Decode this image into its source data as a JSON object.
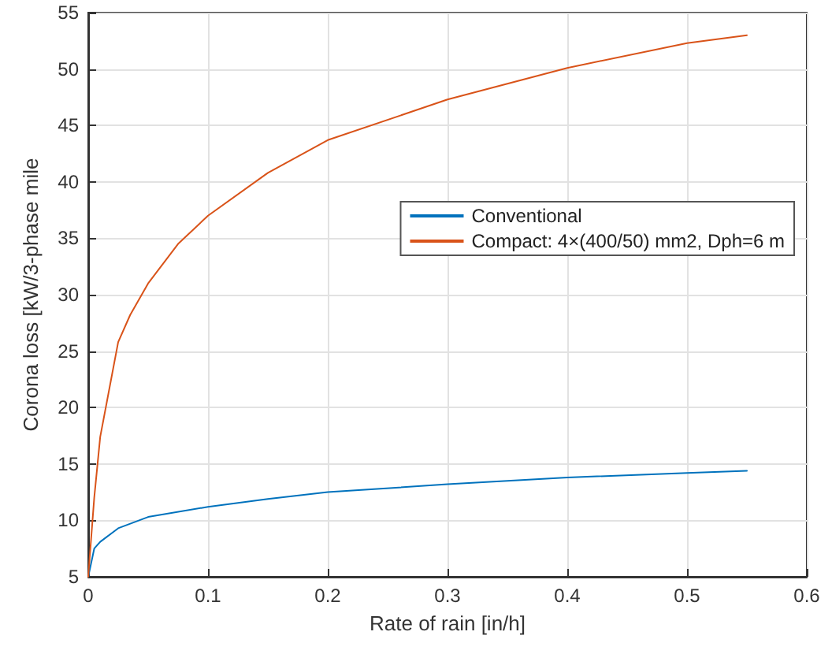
{
  "chart_data": {
    "type": "line",
    "xlabel": "Rate of rain [in/h]",
    "ylabel": "Corona loss [kW/3-phase mile",
    "xlim": [
      0,
      0.6
    ],
    "xticks": [
      0,
      0.1,
      0.2,
      0.3,
      0.4,
      0.5,
      0.6
    ],
    "ylim": [
      5,
      55
    ],
    "yticks": [
      5,
      10,
      15,
      20,
      25,
      30,
      35,
      40,
      45,
      50,
      55
    ],
    "grid": true,
    "legend": "right",
    "marker": "none",
    "line_style": "solid",
    "series": [
      {
        "name": "Conventional",
        "color": "#0072bd",
        "x": [
          0,
          0.005,
          0.01,
          0.025,
          0.05,
          0.1,
          0.15,
          0.2,
          0.3,
          0.4,
          0.5,
          0.55
        ],
        "values": [
          5,
          7.5,
          8.1,
          9.3,
          10.3,
          11.2,
          11.9,
          12.5,
          13.2,
          13.8,
          14.2,
          14.4
        ]
      },
      {
        "name": "Compact: 4×(400/50) mm2, Dph=6 m",
        "color": "#d95319",
        "x": [
          0,
          0.005,
          0.01,
          0.025,
          0.035,
          0.05,
          0.075,
          0.1,
          0.15,
          0.2,
          0.3,
          0.4,
          0.5,
          0.55
        ],
        "values": [
          5,
          12,
          17.4,
          25.8,
          28.2,
          31,
          34.5,
          37,
          40.8,
          43.7,
          47.3,
          50.1,
          52.3,
          53
        ]
      }
    ]
  }
}
